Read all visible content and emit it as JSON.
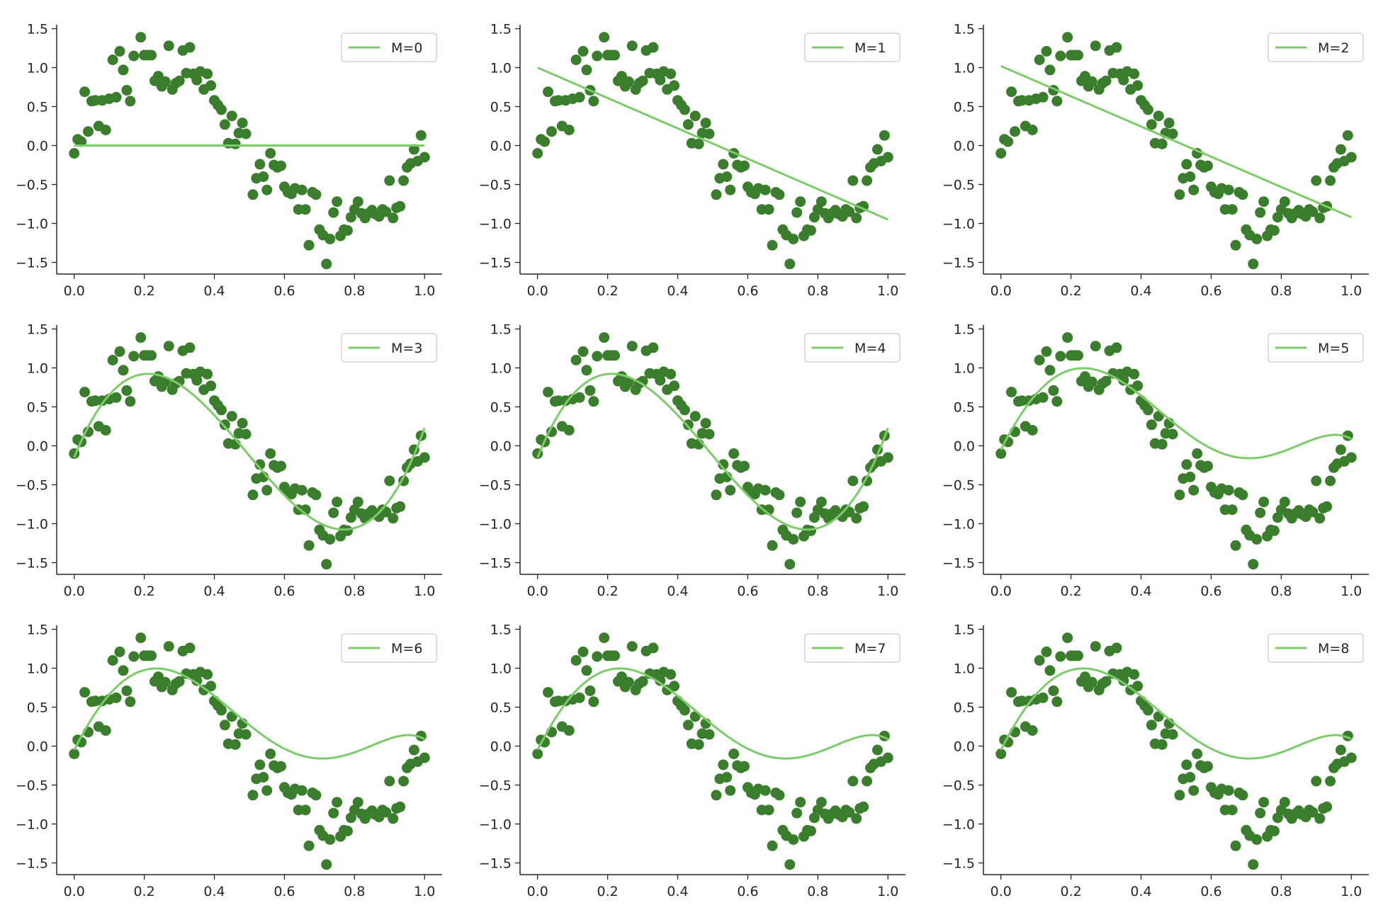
{
  "colors": {
    "points": "#3a7d2c",
    "fit_line": "#7ccd6a",
    "axis": "#262626",
    "legend_border": "#cccccc"
  },
  "chart_data": {
    "type": "scatter",
    "grid": false,
    "legend_position": "top-right",
    "panels": [
      {
        "legend": "M=0",
        "fit": [
          0.0
        ]
      },
      {
        "legend": "M=1",
        "fit": [
          1.0,
          -1.95
        ]
      },
      {
        "legend": "M=2",
        "fit": [
          1.02,
          -1.94,
          0.0
        ]
      },
      {
        "legend": "M=3",
        "fit": [
          -0.15,
          11.2,
          -33.8,
          22.98
        ]
      },
      {
        "legend": "M=4",
        "fit": [
          -0.15,
          11.2,
          -33.8,
          22.98,
          0.0
        ]
      },
      {
        "legend": "M=5",
        "fit": [
          -0.05,
          8.9,
          -15.9,
          -27.3,
          69.8,
          -35.36
        ]
      },
      {
        "legend": "M=6",
        "fit": [
          -0.05,
          8.9,
          -15.9,
          -27.3,
          69.8,
          -35.36,
          0.0
        ]
      },
      {
        "legend": "M=7",
        "fit": [
          -0.05,
          8.9,
          -15.9,
          -27.3,
          69.8,
          -35.36,
          0.0,
          0.0
        ]
      },
      {
        "legend": "M=8",
        "fit": [
          -0.05,
          8.9,
          -15.9,
          -27.3,
          69.8,
          -35.36,
          0.0,
          0.0,
          0.0
        ]
      }
    ],
    "xlim": [
      -0.05,
      1.05
    ],
    "ylim": [
      -1.65,
      1.55
    ],
    "x_ticks": [
      "0.0",
      "0.2",
      "0.4",
      "0.6",
      "0.8",
      "1.0"
    ],
    "y_ticks": [
      "1.5",
      "1.0",
      "0.5",
      "0.0",
      "−0.5",
      "−1.0",
      "−1.5"
    ],
    "x_tick_values": [
      0.0,
      0.2,
      0.4,
      0.6,
      0.8,
      1.0
    ],
    "y_tick_values": [
      1.5,
      1.0,
      0.5,
      0.0,
      -0.5,
      -1.0,
      -1.5
    ],
    "points": [
      [
        0.0,
        -0.1
      ],
      [
        0.01,
        0.08
      ],
      [
        0.02,
        0.05
      ],
      [
        0.03,
        0.69
      ],
      [
        0.04,
        0.18
      ],
      [
        0.05,
        0.57
      ],
      [
        0.06,
        0.58
      ],
      [
        0.07,
        0.25
      ],
      [
        0.08,
        0.58
      ],
      [
        0.09,
        0.2
      ],
      [
        0.1,
        0.6
      ],
      [
        0.11,
        1.1
      ],
      [
        0.12,
        0.62
      ],
      [
        0.13,
        1.21
      ],
      [
        0.14,
        0.97
      ],
      [
        0.15,
        0.71
      ],
      [
        0.16,
        0.57
      ],
      [
        0.17,
        1.15
      ],
      [
        0.19,
        1.39
      ],
      [
        0.2,
        1.16
      ],
      [
        0.21,
        1.16
      ],
      [
        0.22,
        1.16
      ],
      [
        0.23,
        0.83
      ],
      [
        0.24,
        0.89
      ],
      [
        0.25,
        0.76
      ],
      [
        0.26,
        0.82
      ],
      [
        0.27,
        1.28
      ],
      [
        0.28,
        0.72
      ],
      [
        0.29,
        0.8
      ],
      [
        0.3,
        0.83
      ],
      [
        0.31,
        1.22
      ],
      [
        0.32,
        0.93
      ],
      [
        0.33,
        1.26
      ],
      [
        0.34,
        0.92
      ],
      [
        0.35,
        0.84
      ],
      [
        0.36,
        0.95
      ],
      [
        0.37,
        0.72
      ],
      [
        0.38,
        0.92
      ],
      [
        0.39,
        0.77
      ],
      [
        0.4,
        0.58
      ],
      [
        0.41,
        0.52
      ],
      [
        0.42,
        0.46
      ],
      [
        0.43,
        0.27
      ],
      [
        0.44,
        0.03
      ],
      [
        0.45,
        0.38
      ],
      [
        0.46,
        0.02
      ],
      [
        0.47,
        0.16
      ],
      [
        0.48,
        0.29
      ],
      [
        0.49,
        0.15
      ],
      [
        0.51,
        -0.63
      ],
      [
        0.52,
        -0.42
      ],
      [
        0.53,
        -0.24
      ],
      [
        0.54,
        -0.4
      ],
      [
        0.55,
        -0.57
      ],
      [
        0.56,
        -0.1
      ],
      [
        0.57,
        -0.25
      ],
      [
        0.58,
        -0.28
      ],
      [
        0.59,
        -0.26
      ],
      [
        0.6,
        -0.53
      ],
      [
        0.61,
        -0.6
      ],
      [
        0.62,
        -0.62
      ],
      [
        0.63,
        -0.55
      ],
      [
        0.64,
        -0.82
      ],
      [
        0.65,
        -0.57
      ],
      [
        0.66,
        -0.82
      ],
      [
        0.67,
        -1.28
      ],
      [
        0.68,
        -0.6
      ],
      [
        0.69,
        -0.63
      ],
      [
        0.7,
        -1.08
      ],
      [
        0.71,
        -1.15
      ],
      [
        0.72,
        -1.52
      ],
      [
        0.73,
        -1.2
      ],
      [
        0.74,
        -0.86
      ],
      [
        0.75,
        -0.72
      ],
      [
        0.76,
        -1.16
      ],
      [
        0.77,
        -1.08
      ],
      [
        0.78,
        -1.09
      ],
      [
        0.79,
        -0.92
      ],
      [
        0.8,
        -0.82
      ],
      [
        0.81,
        -0.72
      ],
      [
        0.82,
        -0.87
      ],
      [
        0.83,
        -0.93
      ],
      [
        0.84,
        -0.87
      ],
      [
        0.85,
        -0.83
      ],
      [
        0.86,
        -0.88
      ],
      [
        0.87,
        -0.91
      ],
      [
        0.88,
        -0.82
      ],
      [
        0.89,
        -0.85
      ],
      [
        0.9,
        -0.45
      ],
      [
        0.91,
        -0.93
      ],
      [
        0.92,
        -0.8
      ],
      [
        0.93,
        -0.78
      ],
      [
        0.94,
        -0.45
      ],
      [
        0.95,
        -0.28
      ],
      [
        0.96,
        -0.23
      ],
      [
        0.97,
        -0.05
      ],
      [
        0.98,
        -0.2
      ],
      [
        0.99,
        0.13
      ],
      [
        1.0,
        -0.15
      ]
    ]
  }
}
